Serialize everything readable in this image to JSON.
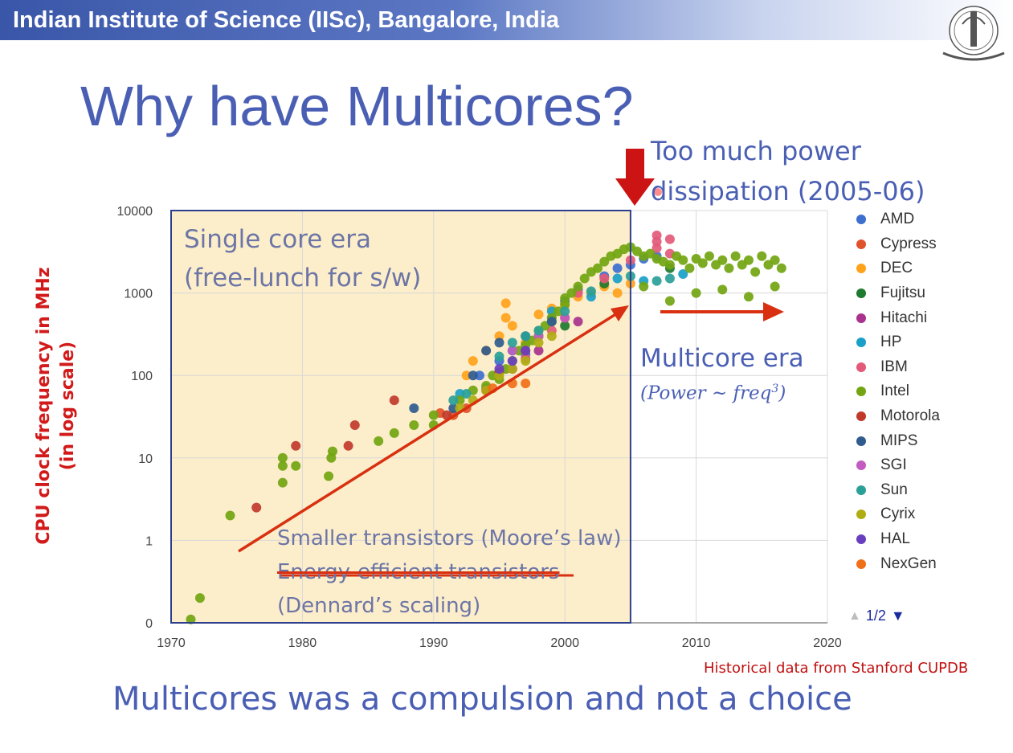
{
  "header": {
    "title": "Indian Institute of Science (IISc), Bangalore, India"
  },
  "slide": {
    "title": "Why have Multicores?",
    "bottom_text": "Multicores was a compulsion and not a choice",
    "source_note": "Historical data from Stanford CUPDB"
  },
  "annotations": {
    "single_era_line1": "Single core era",
    "single_era_line2": "(free-lunch for s/w)",
    "power_line1": "Too much power",
    "power_line2": "dissipation (2005-06)",
    "multicore_era": "Multicore era",
    "power_eq_prefix": "(Power ~ freq",
    "power_eq_exp": "3",
    "power_eq_suffix": ")",
    "smaller_transistors": "Smaller transistors (Moore’s law)",
    "energy_efficient": "Energy-efficient transistors",
    "dennard": "(Dennard’s scaling)"
  },
  "pager": {
    "label": "1/2"
  },
  "colors": {
    "title": "#4a5fb4",
    "annotation_red": "#d21a1a",
    "single_core_shading": "#fdeecb",
    "arrow_orange": "#d83010"
  },
  "chart_data": {
    "type": "scatter",
    "title": "",
    "xlabel": "",
    "ylabel_line1": "CPU clock frequency in MHz",
    "ylabel_line2": "(in log scale)",
    "y_scale": "log",
    "xlim": [
      1970,
      2020
    ],
    "ylim": [
      0.1,
      10000
    ],
    "x_ticks": [
      1970,
      1980,
      1990,
      2000,
      2010,
      2020
    ],
    "y_ticks": [
      {
        "value": 0.1,
        "label": "0"
      },
      {
        "value": 1,
        "label": "1"
      },
      {
        "value": 10,
        "label": "10"
      },
      {
        "value": 100,
        "label": "100"
      },
      {
        "value": 1000,
        "label": "1000"
      },
      {
        "value": 10000,
        "label": "10000"
      }
    ],
    "grid": true,
    "legend_position": "right",
    "series": [
      {
        "name": "AMD",
        "color": "#3d6fcf",
        "points": [
          [
            1993.5,
            100
          ],
          [
            1995,
            150
          ],
          [
            1996,
            200
          ],
          [
            1997,
            180
          ],
          [
            1999,
            500
          ],
          [
            2000,
            800
          ],
          [
            2001,
            1100
          ],
          [
            2003,
            1600
          ],
          [
            2004,
            2000
          ],
          [
            2005,
            2200
          ],
          [
            2006,
            2600
          ],
          [
            2007,
            2800
          ]
        ]
      },
      {
        "name": "Cypress",
        "color": "#e0522b",
        "points": [
          [
            1990.5,
            35
          ],
          [
            1991.5,
            33
          ],
          [
            1992.5,
            40
          ]
        ]
      },
      {
        "name": "DEC",
        "color": "#ffa21b",
        "points": [
          [
            1992.5,
            100
          ],
          [
            1993,
            150
          ],
          [
            1994,
            200
          ],
          [
            1995,
            300
          ],
          [
            1995.5,
            500
          ],
          [
            1995.5,
            750
          ],
          [
            1996,
            400
          ],
          [
            1997,
            250
          ],
          [
            1998,
            550
          ],
          [
            1999,
            650
          ],
          [
            2000,
            700
          ],
          [
            2001,
            900
          ],
          [
            2002,
            1000
          ],
          [
            2003,
            1200
          ],
          [
            2004,
            1000
          ],
          [
            2005,
            1300
          ]
        ]
      },
      {
        "name": "Fujitsu",
        "color": "#1e7a2e",
        "points": [
          [
            1998,
            300
          ],
          [
            2000,
            400
          ],
          [
            2003,
            1300
          ],
          [
            2008,
            2000
          ]
        ]
      },
      {
        "name": "Hitachi",
        "color": "#a8328e",
        "points": [
          [
            1996,
            120
          ],
          [
            1998,
            200
          ],
          [
            2001,
            450
          ]
        ]
      },
      {
        "name": "HP",
        "color": "#1aa0c8",
        "points": [
          [
            1992,
            60
          ],
          [
            1994,
            70
          ],
          [
            1996,
            200
          ],
          [
            1999,
            600
          ],
          [
            2002,
            900
          ],
          [
            2004,
            1500
          ],
          [
            2006,
            1400
          ],
          [
            2009,
            1700
          ]
        ]
      },
      {
        "name": "IBM",
        "color": "#e35a79",
        "points": [
          [
            1997,
            160
          ],
          [
            1999,
            350
          ],
          [
            2001,
            1000
          ],
          [
            2003,
            1500
          ],
          [
            2005,
            2500
          ],
          [
            2007,
            3500
          ],
          [
            2007,
            4200
          ],
          [
            2007,
            5000
          ],
          [
            2008,
            4500
          ],
          [
            2008,
            3000
          ]
        ]
      },
      {
        "name": "Intel",
        "color": "#72a511",
        "points": [
          [
            1971.5,
            0.11
          ],
          [
            1972.2,
            0.2
          ],
          [
            1974.5,
            2
          ],
          [
            1978.5,
            5
          ],
          [
            1978.5,
            8
          ],
          [
            1978.5,
            10
          ],
          [
            1979.5,
            8
          ],
          [
            1982,
            6
          ],
          [
            1982.2,
            10
          ],
          [
            1982.3,
            12
          ],
          [
            1985.8,
            16
          ],
          [
            1987,
            20
          ],
          [
            1988.5,
            25
          ],
          [
            1990,
            25
          ],
          [
            1990,
            33
          ],
          [
            1992,
            50
          ],
          [
            1993,
            66
          ],
          [
            1994,
            75
          ],
          [
            1994.5,
            100
          ],
          [
            1995,
            90
          ],
          [
            1995.5,
            120
          ],
          [
            1996,
            150
          ],
          [
            1996.5,
            200
          ],
          [
            1997,
            233
          ],
          [
            1997.5,
            266
          ],
          [
            1998,
            300
          ],
          [
            1998,
            350
          ],
          [
            1998.5,
            400
          ],
          [
            1999,
            450
          ],
          [
            1999,
            500
          ],
          [
            1999.5,
            600
          ],
          [
            2000,
            733
          ],
          [
            2000,
            866
          ],
          [
            2000.5,
            1000
          ],
          [
            2001,
            1200
          ],
          [
            2001.5,
            1500
          ],
          [
            2002,
            1800
          ],
          [
            2002.5,
            2000
          ],
          [
            2003,
            2400
          ],
          [
            2003.5,
            2800
          ],
          [
            2004,
            3000
          ],
          [
            2004.5,
            3400
          ],
          [
            2005,
            3600
          ],
          [
            2005.5,
            3200
          ],
          [
            2006,
            2800
          ],
          [
            2006.5,
            3000
          ],
          [
            2007,
            2600
          ],
          [
            2007.5,
            2400
          ],
          [
            2008,
            2200
          ],
          [
            2008.5,
            2800
          ],
          [
            2009,
            2500
          ],
          [
            2009.5,
            2000
          ],
          [
            2010,
            2600
          ],
          [
            2010.5,
            2300
          ],
          [
            2011,
            2800
          ],
          [
            2011.5,
            2200
          ],
          [
            2012,
            2500
          ],
          [
            2012.5,
            2000
          ],
          [
            2013,
            2800
          ],
          [
            2013.5,
            2200
          ],
          [
            2014,
            2500
          ],
          [
            2014.5,
            1800
          ],
          [
            2015,
            2800
          ],
          [
            2015.5,
            2200
          ],
          [
            2016,
            2500
          ],
          [
            2016.5,
            2000
          ],
          [
            2006,
            1200
          ],
          [
            2008,
            800
          ],
          [
            2010,
            1000
          ],
          [
            2012,
            1100
          ],
          [
            2014,
            900
          ],
          [
            2016,
            1200
          ]
        ]
      },
      {
        "name": "Motorola",
        "color": "#c0392b",
        "points": [
          [
            1976.5,
            2.5
          ],
          [
            1979.5,
            14
          ],
          [
            1983.5,
            14
          ],
          [
            1984,
            25
          ],
          [
            1987,
            50
          ],
          [
            1991,
            33
          ],
          [
            1994,
            66
          ],
          [
            1995,
            110
          ],
          [
            1997,
            200
          ],
          [
            2000,
            500
          ]
        ]
      },
      {
        "name": "MIPS",
        "color": "#2f5b8f",
        "points": [
          [
            1988.5,
            40
          ],
          [
            1991.5,
            40
          ],
          [
            1993,
            100
          ],
          [
            1994,
            200
          ],
          [
            1995,
            250
          ],
          [
            1997,
            300
          ],
          [
            1999,
            450
          ]
        ]
      },
      {
        "name": "SGI",
        "color": "#c25cc0",
        "points": [
          [
            1996,
            200
          ],
          [
            1998,
            300
          ],
          [
            2000,
            500
          ]
        ]
      },
      {
        "name": "Sun",
        "color": "#2aa098",
        "points": [
          [
            1991.5,
            50
          ],
          [
            1992.5,
            60
          ],
          [
            1995,
            170
          ],
          [
            1996,
            250
          ],
          [
            1997,
            300
          ],
          [
            1998,
            350
          ],
          [
            2000,
            600
          ],
          [
            2002,
            1050
          ],
          [
            2005,
            1600
          ],
          [
            2007,
            1400
          ],
          [
            2008,
            1500
          ]
        ]
      },
      {
        "name": "Cyrix",
        "color": "#b0ad13",
        "points": [
          [
            1992,
            40
          ],
          [
            1993,
            50
          ],
          [
            1994,
            66
          ],
          [
            1995,
            100
          ],
          [
            1996,
            120
          ],
          [
            1997,
            150
          ],
          [
            1998,
            250
          ],
          [
            1999,
            300
          ]
        ]
      },
      {
        "name": "HAL",
        "color": "#6a3fbf",
        "points": [
          [
            1995,
            120
          ],
          [
            1996,
            150
          ],
          [
            1997,
            200
          ]
        ]
      },
      {
        "name": "NexGen",
        "color": "#f07018",
        "points": [
          [
            1994.5,
            70
          ],
          [
            1996,
            80
          ],
          [
            1997,
            80
          ]
        ]
      }
    ]
  }
}
